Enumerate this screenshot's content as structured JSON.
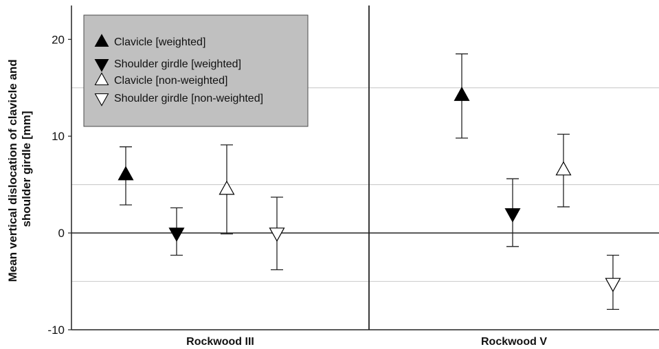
{
  "chart_data": {
    "type": "scatter",
    "ylabel_lines": [
      "Mean vertical dislocation of clavicle and",
      "shoulder girdle [mm]"
    ],
    "ylim": [
      -10,
      23.5
    ],
    "yticks": [
      "20",
      "10",
      "0",
      "-10"
    ],
    "ytick_values": [
      20,
      10,
      0,
      -10
    ],
    "gridlines": [
      15,
      5,
      -5
    ],
    "grid": true,
    "legend_position": "top-left",
    "categories": [
      "Rockwood III",
      "Rockwood V"
    ],
    "series": [
      {
        "name": "Clavicle [weighted]",
        "marker": "triangle-up",
        "filled": true,
        "values": [
          6.0,
          14.2
        ],
        "lower": [
          2.9,
          9.8
        ],
        "upper": [
          8.9,
          18.5
        ]
      },
      {
        "name": "Shoulder girdle [weighted]",
        "marker": "triangle-down",
        "filled": true,
        "values": [
          0.0,
          2.0
        ],
        "lower": [
          -2.3,
          -1.4
        ],
        "upper": [
          2.6,
          5.6
        ]
      },
      {
        "name": "Clavicle [non-weighted]",
        "marker": "triangle-up",
        "filled": false,
        "values": [
          4.5,
          6.5
        ],
        "lower": [
          -0.1,
          2.7
        ],
        "upper": [
          9.1,
          10.2
        ]
      },
      {
        "name": "Shoulder girdle [non-weighted]",
        "marker": "triangle-down",
        "filled": false,
        "values": [
          0.0,
          -5.2
        ],
        "lower": [
          -3.8,
          -7.9
        ],
        "upper": [
          3.7,
          -2.3
        ]
      }
    ]
  }
}
